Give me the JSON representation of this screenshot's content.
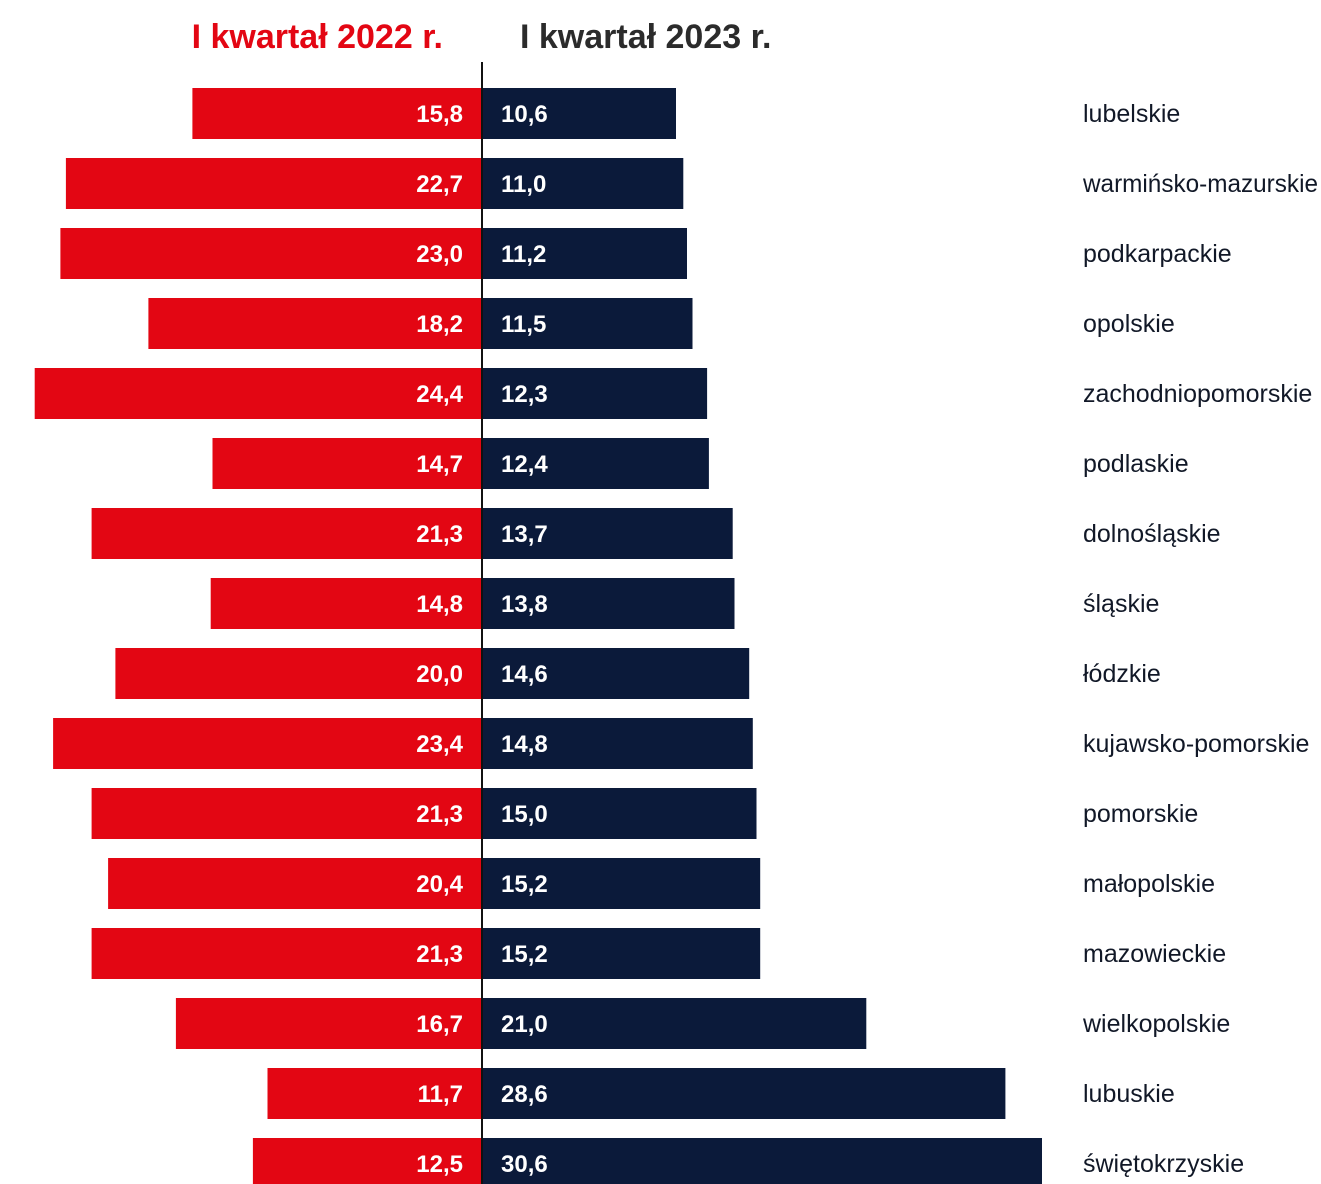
{
  "chart_data": {
    "type": "bar",
    "orientation": "horizontal-butterfly",
    "categories": [
      "lubelskie",
      "warmińsko-mazurskie",
      "podkarpackie",
      "opolskie",
      "zachodniopomorskie",
      "podlaskie",
      "dolnośląskie",
      "śląskie",
      "łódzkie",
      "kujawsko-pomorskie",
      "pomorskie",
      "małopolskie",
      "mazowieckie",
      "wielkopolskie",
      "lubuskie",
      "świętokrzyskie"
    ],
    "series": [
      {
        "name": "I kwartał 2022 r.",
        "color": "#e30613",
        "values": [
          15.8,
          22.7,
          23.0,
          18.2,
          24.4,
          14.7,
          21.3,
          14.8,
          20.0,
          23.4,
          21.3,
          20.4,
          21.3,
          16.7,
          11.7,
          12.5
        ],
        "labels": [
          "15,8",
          "22,7",
          "23,0",
          "18,2",
          "24,4",
          "14,7",
          "21,3",
          "14,8",
          "20,0",
          "23,4",
          "21,3",
          "20,4",
          "21,3",
          "16,7",
          "11,7",
          "12,5"
        ]
      },
      {
        "name": "I kwartał 2023 r.",
        "color": "#0b1a3a",
        "values": [
          10.6,
          11.0,
          11.2,
          11.5,
          12.3,
          12.4,
          13.7,
          13.8,
          14.6,
          14.8,
          15.0,
          15.2,
          15.2,
          21.0,
          28.6,
          30.6
        ],
        "labels": [
          "10,6",
          "11,0",
          "11,2",
          "11,5",
          "12,3",
          "12,4",
          "13,7",
          "13,8",
          "14,6",
          "14,8",
          "15,0",
          "15,2",
          "15,2",
          "21,0",
          "28,6",
          "30,6"
        ]
      }
    ],
    "header_colors": {
      "left": "#e30613",
      "right": "#2b2b2b"
    },
    "axis_color": "#111111",
    "label_color": "#ffffff",
    "category_color": "#111827"
  }
}
